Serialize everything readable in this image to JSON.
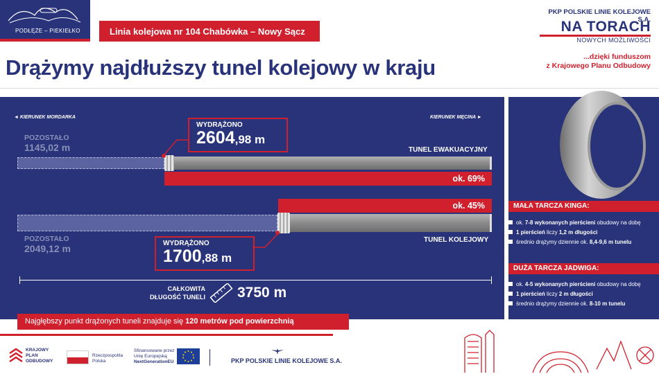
{
  "header": {
    "logo_caption": "PODŁĘŻE – PIEKIEŁKO",
    "route_label": "Linia kolejowa nr 104 Chabówka – Nowy Sącz",
    "headline": "Drążymy najdłuższy tunel kolejowy w kraju",
    "brand": {
      "company": "PKP POLSKIE LINIE KOLEJOWE S.A.",
      "slogan_main": "NA TORACH",
      "slogan_sub": "NOWYCH MOŻLIWOŚCI",
      "funding_line1": "...dzięki funduszom",
      "funding_line2": "z Krajowego Planu Odbudowy"
    }
  },
  "directions": {
    "left": "KIERUNEK MORDARKA",
    "right": "KIERUNEK MĘCINA"
  },
  "tunnels": [
    {
      "name": "TUNEL EWAKUACYJNY",
      "remaining_label": "POZOSTAŁO",
      "remaining_value": "1145,02 m",
      "drilled_label": "WYDRĄŻONO",
      "drilled_int": "2604",
      "drilled_dec": ",98 m",
      "percent_label": "ok. 69%",
      "progress": 0.69
    },
    {
      "name": "TUNEL KOLEJOWY",
      "remaining_label": "POZOSTAŁO",
      "remaining_value": "2049,12 m",
      "drilled_label": "WYDRĄŻONO",
      "drilled_int": "1700",
      "drilled_dec": ",88 m",
      "percent_label": "ok. 45%",
      "progress": 0.45
    }
  ],
  "total": {
    "label_line1": "CAŁKOWITA",
    "label_line2": "DŁUGOŚĆ TUNELI",
    "value": "3750 m"
  },
  "depth_note": {
    "text": "Najgłębszy punkt drążonych tuneli znajduje się ",
    "bold": "120 metrów pod powierzchnią"
  },
  "side": {
    "kinga": {
      "title": "MAŁA TARCZA KINGA:",
      "items": [
        {
          "pre": "ok. ",
          "bold": "7-8 wykonanych pierścieni",
          "post": " obudowy na dobę"
        },
        {
          "pre": "",
          "bold": "1 pierścień",
          "post": " liczy ",
          "bold2": "1,2 m długości"
        },
        {
          "pre": "średnio drążymy dziennie ok. ",
          "bold": "8,4-9,6 m tunelu",
          "post": ""
        }
      ]
    },
    "jadwiga": {
      "title": "DUŻA TARCZA JADWIGA:",
      "items": [
        {
          "pre": "ok. ",
          "bold": "4-5 wykonanych pierścieni",
          "post": " obudowy na dobę"
        },
        {
          "pre": "",
          "bold": "1 pierścień",
          "post": " liczy ",
          "bold2": "2 m długości"
        },
        {
          "pre": "średnio drążymy dziennie ok. ",
          "bold": "8-10 m tunelu",
          "post": ""
        }
      ]
    }
  },
  "footer": {
    "kpo_line1": "KRAJOWY",
    "kpo_line2": "PLAN",
    "kpo_line3": "ODBUDOWY",
    "rp_line1": "Rzeczpospolita",
    "rp_line2": "Polska",
    "eu_line1": "Sfinansowane przez",
    "eu_line2": "Unię Europejską",
    "eu_line3": "NextGenerationEU",
    "pkp": "PKP POLSKIE LINIE KOLEJOWE S.A."
  },
  "colors": {
    "navy": "#29337a",
    "red": "#d0202e",
    "tube_gray": "#8c8c8c",
    "remaining_gray": "#8a90b8"
  }
}
